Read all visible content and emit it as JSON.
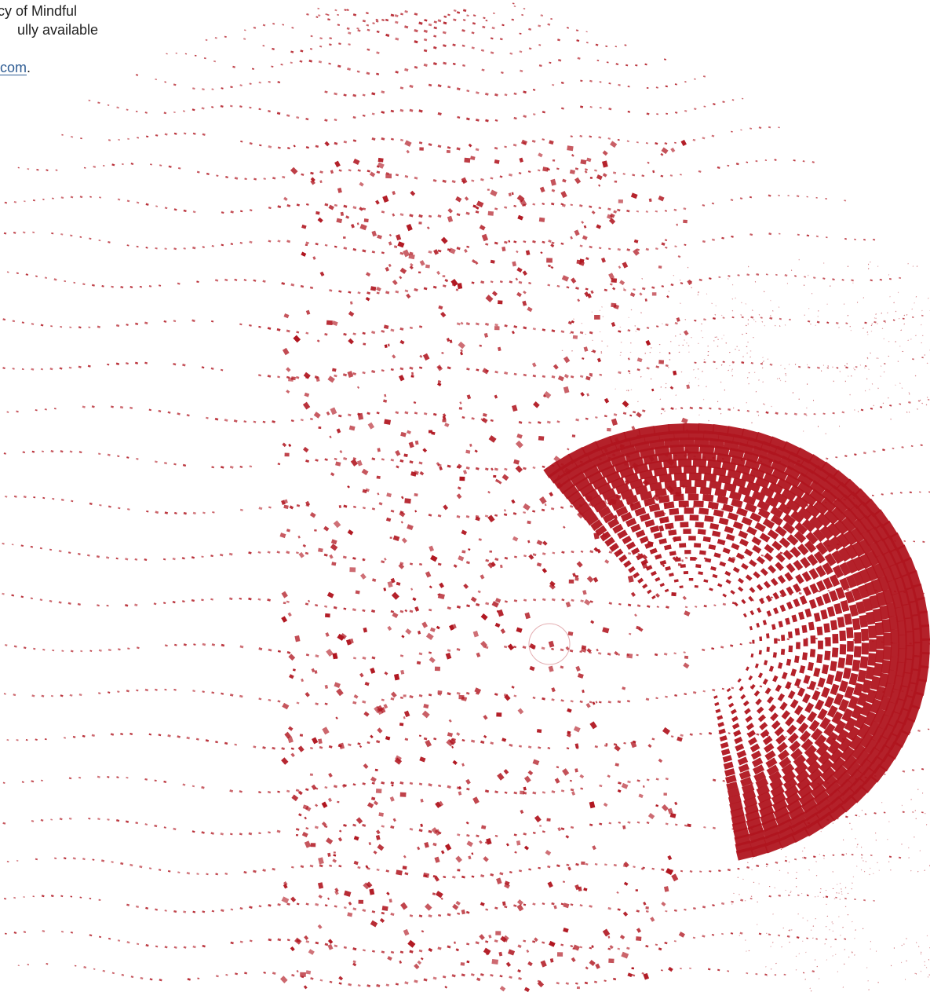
{
  "text": {
    "line1": "cy of Mindful",
    "line2": "ully available",
    "link_text": "com",
    "link_suffix": "."
  },
  "artwork": {
    "name": "red-dot-sphere-illustration",
    "color": "#b0151f"
  }
}
